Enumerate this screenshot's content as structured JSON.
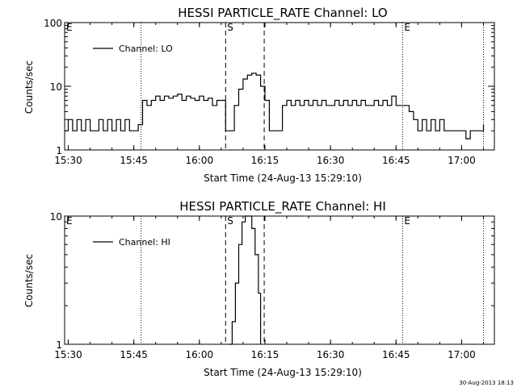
{
  "chart_data": [
    {
      "type": "line",
      "title": "HESSI PARTICLE_RATE Channel: LO",
      "xlabel": "Start Time (24-Aug-13 15:29:10)",
      "ylabel": "Counts/sec",
      "y_scale": "log",
      "ylim": [
        1,
        100
      ],
      "xlim": [
        "15:29:10",
        "17:07:30"
      ],
      "x_ticks": [
        "15:30",
        "15:45",
        "16:00",
        "16:15",
        "16:30",
        "16:45",
        "17:00"
      ],
      "y_ticks": [
        "1",
        "10",
        "100"
      ],
      "legend": {
        "label": "Channel: LO",
        "position": "top-left"
      },
      "markers": [
        {
          "label": "E",
          "time": "15:29:10",
          "style": "dotted"
        },
        {
          "label": "",
          "time": "15:46:40",
          "style": "dotted"
        },
        {
          "label": "S",
          "time": "16:06:00",
          "style": "dashed"
        },
        {
          "label": "",
          "time": "16:14:50",
          "style": "dashed"
        },
        {
          "label": "E",
          "time": "16:46:30",
          "style": "dotted"
        },
        {
          "label": "",
          "time": "17:05:00",
          "style": "dotted"
        }
      ],
      "series": [
        {
          "name": "Channel: LO",
          "x": [
            "15:29:10",
            "15:30:00",
            "15:31:00",
            "15:32:00",
            "15:33:00",
            "15:34:00",
            "15:35:00",
            "15:36:00",
            "15:37:00",
            "15:38:00",
            "15:39:00",
            "15:40:00",
            "15:41:00",
            "15:42:00",
            "15:43:00",
            "15:44:00",
            "15:45:00",
            "15:46:00",
            "15:47:00",
            "15:48:00",
            "15:49:00",
            "15:50:00",
            "15:51:00",
            "15:52:00",
            "15:53:00",
            "15:54:00",
            "15:55:00",
            "15:56:00",
            "15:57:00",
            "15:58:00",
            "15:59:00",
            "16:00:00",
            "16:01:00",
            "16:02:00",
            "16:03:00",
            "16:04:00",
            "16:05:00",
            "16:06:00",
            "16:07:00",
            "16:08:00",
            "16:09:00",
            "16:10:00",
            "16:11:00",
            "16:12:00",
            "16:13:00",
            "16:14:00",
            "16:15:00",
            "16:16:00",
            "16:17:00",
            "16:18:00",
            "16:19:00",
            "16:20:00",
            "16:21:00",
            "16:22:00",
            "16:23:00",
            "16:24:00",
            "16:25:00",
            "16:26:00",
            "16:27:00",
            "16:28:00",
            "16:29:00",
            "16:30:00",
            "16:31:00",
            "16:32:00",
            "16:33:00",
            "16:34:00",
            "16:35:00",
            "16:36:00",
            "16:37:00",
            "16:38:00",
            "16:39:00",
            "16:40:00",
            "16:41:00",
            "16:42:00",
            "16:43:00",
            "16:44:00",
            "16:45:00",
            "16:46:00",
            "16:47:00",
            "16:48:00",
            "16:49:00",
            "16:50:00",
            "16:51:00",
            "16:52:00",
            "16:53:00",
            "16:54:00",
            "16:55:00",
            "16:56:00",
            "16:57:00",
            "16:58:00",
            "16:59:00",
            "17:00:00",
            "17:01:00",
            "17:02:00",
            "17:03:00",
            "17:04:00",
            "17:05:00"
          ],
          "y": [
            2,
            3,
            2,
            3,
            2,
            3,
            2,
            2,
            3,
            2,
            3,
            2,
            3,
            2,
            3,
            2,
            2,
            2.5,
            6,
            5,
            6,
            7,
            6,
            7,
            6.5,
            7,
            7.5,
            6,
            7,
            6.5,
            6,
            7,
            6,
            6.5,
            5,
            6,
            6,
            2,
            2,
            5,
            9,
            13,
            15,
            16,
            15,
            10,
            6,
            2,
            2,
            2,
            5,
            6,
            5,
            6,
            5,
            6,
            5,
            6,
            5,
            6,
            5,
            5,
            6,
            5,
            6,
            5,
            6,
            5,
            6,
            5,
            5,
            6,
            5,
            6,
            5,
            7,
            5,
            5,
            5,
            4,
            3,
            2,
            3,
            2,
            3,
            2,
            3,
            2,
            2,
            2,
            2,
            2,
            1.5,
            2,
            2,
            2,
            2.5
          ]
        }
      ]
    },
    {
      "type": "line",
      "title": "HESSI PARTICLE_RATE Channel: HI",
      "xlabel": "Start Time (24-Aug-13 15:29:10)",
      "ylabel": "Counts/sec",
      "y_scale": "log",
      "ylim": [
        1,
        10
      ],
      "xlim": [
        "15:29:10",
        "17:07:30"
      ],
      "x_ticks": [
        "15:30",
        "15:45",
        "16:00",
        "16:15",
        "16:30",
        "16:45",
        "17:00"
      ],
      "y_ticks": [
        "1",
        "10"
      ],
      "legend": {
        "label": "Channel: HI",
        "position": "top-left"
      },
      "markers": [
        {
          "label": "E",
          "time": "15:29:10",
          "style": "dotted"
        },
        {
          "label": "",
          "time": "15:46:40",
          "style": "dotted"
        },
        {
          "label": "S",
          "time": "16:06:00",
          "style": "dashed"
        },
        {
          "label": "",
          "time": "16:14:50",
          "style": "dashed"
        },
        {
          "label": "E",
          "time": "16:46:30",
          "style": "dotted"
        },
        {
          "label": "",
          "time": "17:05:00",
          "style": "dotted"
        }
      ],
      "series": [
        {
          "name": "Channel: HI",
          "x": [
            "16:06:45",
            "16:07:30",
            "16:08:15",
            "16:09:00",
            "16:09:45",
            "16:10:30",
            "16:11:15",
            "16:12:00",
            "16:12:45",
            "16:13:30",
            "16:14:00"
          ],
          "y": [
            1,
            1.5,
            3,
            6,
            9,
            10,
            10,
            8,
            5,
            2.5,
            1
          ]
        }
      ]
    }
  ],
  "footer": {
    "timestamp": "30-Aug-2013 18:13"
  }
}
